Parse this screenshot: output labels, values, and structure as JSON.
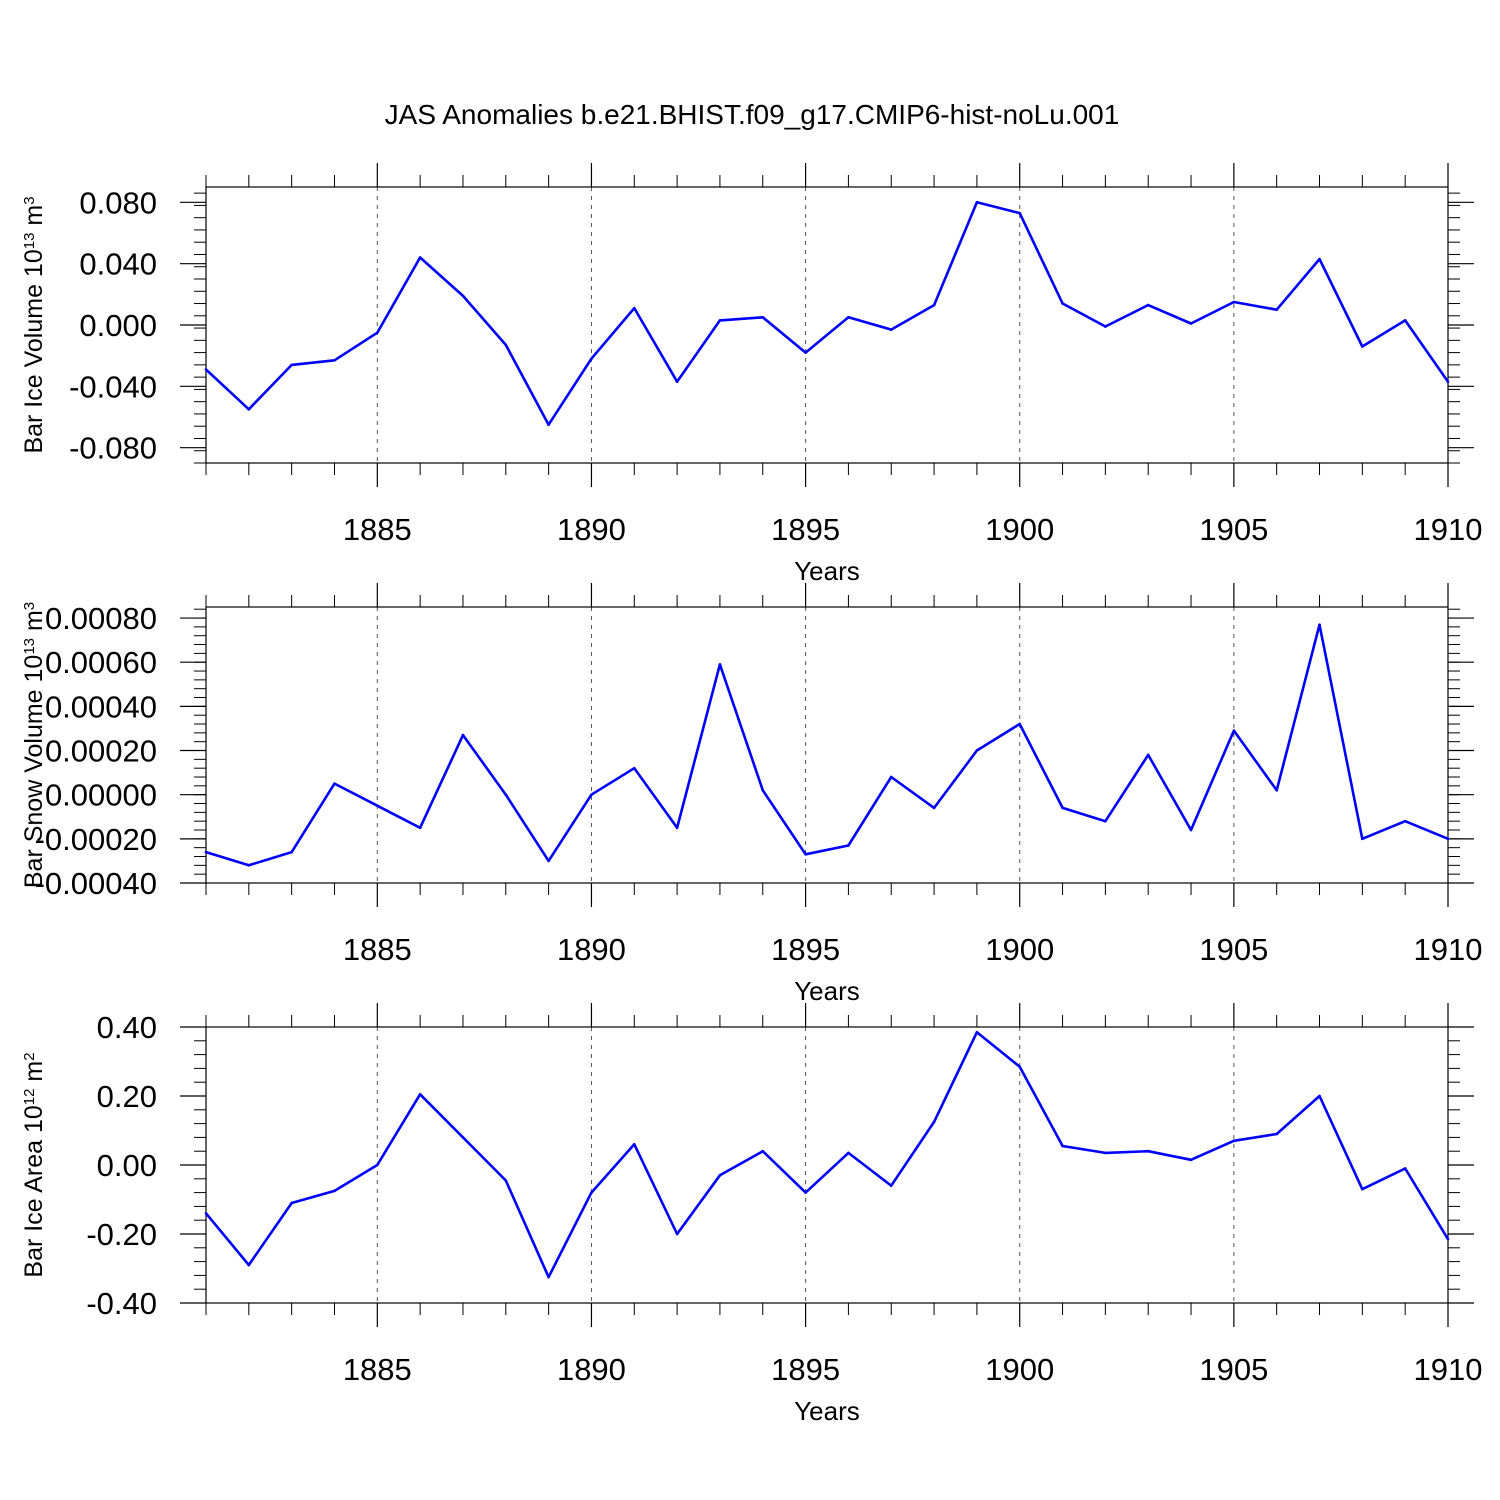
{
  "title": "JAS Anomalies b.e21.BHIST.f09_g17.CMIP6-hist-noLu.001",
  "line_color": "#0000ff",
  "chart_data": [
    {
      "type": "line",
      "ylabel": {
        "base": "Bar Ice Volume 10",
        "exp": "13",
        "unit": " m",
        "unit_exp": "3"
      },
      "xlabel": "Years",
      "xlim": [
        1881,
        1910
      ],
      "ylim": [
        -0.09,
        0.09
      ],
      "xticks": [
        1885,
        1890,
        1895,
        1900,
        1905,
        1910
      ],
      "xtick_labels": [
        "1885",
        "1890",
        "1895",
        "1900",
        "1905",
        "1910"
      ],
      "yticks": [
        -0.08,
        -0.04,
        0.0,
        0.04,
        0.08
      ],
      "ytick_labels": [
        "-0.080",
        "-0.040",
        "0.000",
        "0.040",
        "0.080"
      ],
      "x": [
        1881,
        1882,
        1883,
        1884,
        1885,
        1886,
        1887,
        1888,
        1889,
        1890,
        1891,
        1892,
        1893,
        1894,
        1895,
        1896,
        1897,
        1898,
        1899,
        1900,
        1901,
        1902,
        1903,
        1904,
        1905,
        1906,
        1907,
        1908,
        1909,
        1910
      ],
      "values": [
        -0.029,
        -0.055,
        -0.026,
        -0.023,
        -0.005,
        0.044,
        0.019,
        -0.013,
        -0.065,
        -0.022,
        0.011,
        -0.037,
        0.003,
        0.005,
        -0.018,
        0.005,
        -0.003,
        0.013,
        0.08,
        0.073,
        0.014,
        -0.001,
        0.013,
        0.001,
        0.015,
        0.01,
        0.043,
        -0.014,
        0.003,
        -0.037
      ]
    },
    {
      "type": "line",
      "ylabel": {
        "base": "Bar Snow Volume 10",
        "exp": "13",
        "unit": " m",
        "unit_exp": "3"
      },
      "xlabel": "Years",
      "xlim": [
        1881,
        1910
      ],
      "ylim": [
        -0.0004,
        0.00085
      ],
      "xticks": [
        1885,
        1890,
        1895,
        1900,
        1905,
        1910
      ],
      "xtick_labels": [
        "1885",
        "1890",
        "1895",
        "1900",
        "1905",
        "1910"
      ],
      "yticks": [
        -0.0004,
        -0.0002,
        0.0,
        0.0002,
        0.0004,
        0.0006,
        0.0008
      ],
      "ytick_labels": [
        "-0.00040",
        "-0.00020",
        "0.00000",
        "0.00020",
        "0.00040",
        "0.00060",
        "0.00080"
      ],
      "x": [
        1881,
        1882,
        1883,
        1884,
        1885,
        1886,
        1887,
        1888,
        1889,
        1890,
        1891,
        1892,
        1893,
        1894,
        1895,
        1896,
        1897,
        1898,
        1899,
        1900,
        1901,
        1902,
        1903,
        1904,
        1905,
        1906,
        1907,
        1908,
        1909,
        1910
      ],
      "values": [
        -0.00026,
        -0.00032,
        -0.00026,
        5e-05,
        -5e-05,
        -0.00015,
        0.00027,
        0.0,
        -0.0003,
        0.0,
        0.00012,
        -0.00015,
        0.00059,
        2e-05,
        -0.00027,
        -0.00023,
        8e-05,
        -6e-05,
        0.0002,
        0.00032,
        -6e-05,
        -0.00012,
        0.00018,
        -0.00016,
        0.00029,
        2e-05,
        0.00077,
        -0.0002,
        -0.00012,
        -0.0002
      ]
    },
    {
      "type": "line",
      "ylabel": {
        "base": "Bar Ice Area 10",
        "exp": "12",
        "unit": " m",
        "unit_exp": "2"
      },
      "xlabel": "Years",
      "xlim": [
        1881,
        1910
      ],
      "ylim": [
        -0.4,
        0.4
      ],
      "xticks": [
        1885,
        1890,
        1895,
        1900,
        1905,
        1910
      ],
      "xtick_labels": [
        "1885",
        "1890",
        "1895",
        "1900",
        "1905",
        "1910"
      ],
      "yticks": [
        -0.4,
        -0.2,
        0.0,
        0.2,
        0.4
      ],
      "ytick_labels": [
        "-0.40",
        "-0.20",
        "0.00",
        "0.20",
        "0.40"
      ],
      "x": [
        1881,
        1882,
        1883,
        1884,
        1885,
        1886,
        1887,
        1888,
        1889,
        1890,
        1891,
        1892,
        1893,
        1894,
        1895,
        1896,
        1897,
        1898,
        1899,
        1900,
        1901,
        1902,
        1903,
        1904,
        1905,
        1906,
        1907,
        1908,
        1909,
        1910
      ],
      "values": [
        -0.14,
        -0.29,
        -0.11,
        -0.075,
        0.0,
        0.205,
        0.08,
        -0.045,
        -0.325,
        -0.08,
        0.06,
        -0.2,
        -0.03,
        0.04,
        -0.08,
        0.035,
        -0.06,
        0.125,
        0.385,
        0.285,
        0.055,
        0.035,
        0.04,
        0.015,
        0.07,
        0.09,
        0.2,
        -0.07,
        -0.01,
        -0.215
      ]
    }
  ]
}
